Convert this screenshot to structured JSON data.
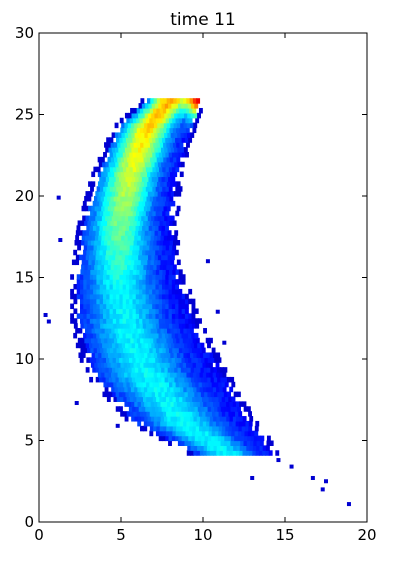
{
  "chart_data": {
    "type": "heatmap",
    "title": "time 11",
    "xlabel": "",
    "ylabel": "",
    "xlim": [
      0,
      20
    ],
    "ylim": [
      0,
      30
    ],
    "xticks": [
      0,
      5,
      10,
      15,
      20
    ],
    "yticks": [
      0,
      5,
      10,
      15,
      20,
      25,
      30
    ],
    "grid": false,
    "colormap": "jet",
    "density_shape": {
      "description_points": [
        {
          "y": 26,
          "x_left": 6.5,
          "x_right": 10.2
        },
        {
          "y": 24,
          "x_left": 4.4,
          "x_right": 9.4
        },
        {
          "y": 21,
          "x_left": 3.1,
          "x_right": 8.6
        },
        {
          "y": 18,
          "x_left": 2.3,
          "x_right": 8.3
        },
        {
          "y": 15,
          "x_left": 1.9,
          "x_right": 8.8
        },
        {
          "y": 12,
          "x_left": 1.9,
          "x_right": 9.8
        },
        {
          "y": 9,
          "x_left": 2.7,
          "x_right": 11.5
        },
        {
          "y": 6,
          "x_left": 5.4,
          "x_right": 13.2
        },
        {
          "y": 4,
          "x_left": 9.2,
          "x_right": 14.6
        }
      ],
      "peak": {
        "x": 9.8,
        "y": 25.8
      }
    },
    "outliers": [
      {
        "x": 0.4,
        "y": 12.7
      },
      {
        "x": 0.6,
        "y": 12.3
      },
      {
        "x": 1.2,
        "y": 19.9
      },
      {
        "x": 1.3,
        "y": 17.3
      },
      {
        "x": 2.3,
        "y": 7.3
      },
      {
        "x": 4.8,
        "y": 5.9
      },
      {
        "x": 14.6,
        "y": 3.8
      },
      {
        "x": 15.4,
        "y": 3.4
      },
      {
        "x": 16.7,
        "y": 2.7
      },
      {
        "x": 17.5,
        "y": 2.5
      },
      {
        "x": 17.3,
        "y": 2.0
      },
      {
        "x": 18.9,
        "y": 1.1
      },
      {
        "x": 13.0,
        "y": 2.7
      },
      {
        "x": 10.3,
        "y": 16.0
      },
      {
        "x": 11.3,
        "y": 11.0
      },
      {
        "x": 10.9,
        "y": 12.9
      }
    ]
  }
}
